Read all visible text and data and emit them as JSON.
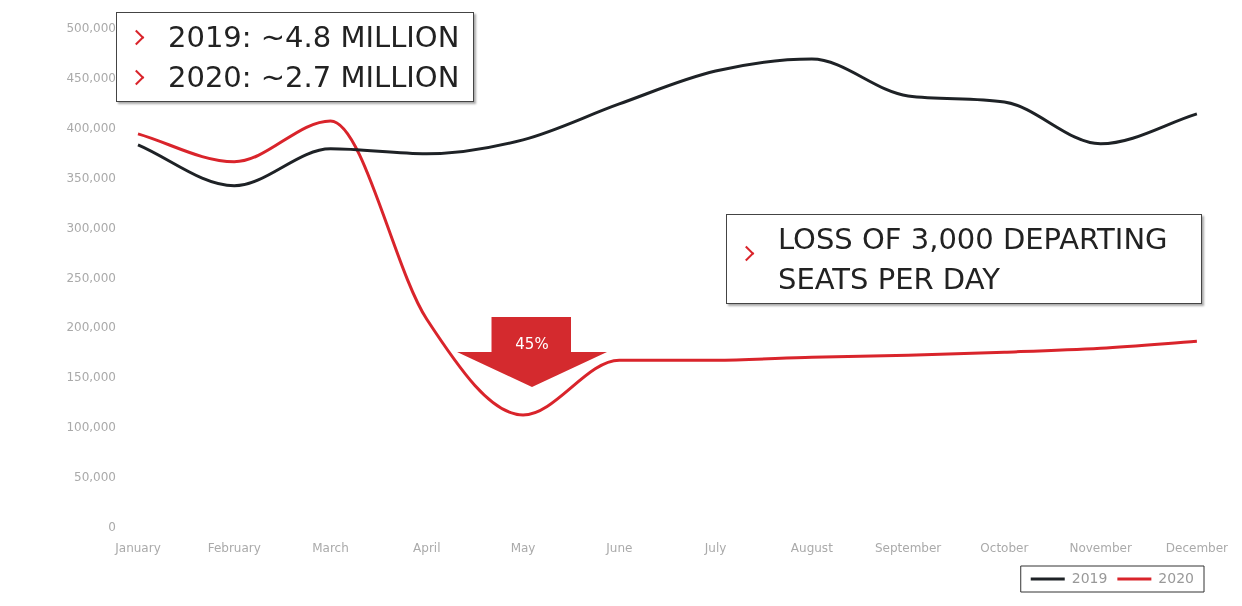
{
  "chart_data": {
    "type": "line",
    "categories": [
      "January",
      "February",
      "March",
      "April",
      "May",
      "June",
      "July",
      "August",
      "September",
      "October",
      "November",
      "December"
    ],
    "series": [
      {
        "name": "2019",
        "color": "#1e2226",
        "values": [
          384000,
          343000,
          380000,
          375000,
          389000,
          425000,
          458000,
          470000,
          433000,
          427000,
          385000,
          415000
        ]
      },
      {
        "name": "2020",
        "color": "#d9242b",
        "values": [
          395000,
          367000,
          408000,
          209000,
          113000,
          168000,
          168000,
          171000,
          173000,
          176000,
          180000,
          187000
        ]
      }
    ],
    "ylim": [
      0,
      500000
    ],
    "yticks": [
      0,
      {
        "value": 50000,
        "label": "50,000"
      },
      {
        "value": 100000,
        "label": "100,000"
      },
      {
        "value": 150000,
        "label": "150,000"
      },
      {
        "value": 200000,
        "label": "200,000"
      },
      {
        "value": 250000,
        "label": "250,000"
      },
      {
        "value": 300000,
        "label": "300,000"
      },
      {
        "value": 350000,
        "label": "350,000"
      },
      {
        "value": 400000,
        "label": "400,000"
      },
      {
        "value": 450000,
        "label": "450,000"
      },
      {
        "value": 500000,
        "label": "500,000"
      }
    ],
    "grid": false,
    "legend": "bottom right",
    "marker": "none",
    "line_style": "solid",
    "annotations": [
      "2019: ~4.8 MILLION",
      "2020: ~2.7 MILLION",
      "LOSS OF 3,000 DEPARTING SEATS PER DAY",
      "45%"
    ]
  }
}
